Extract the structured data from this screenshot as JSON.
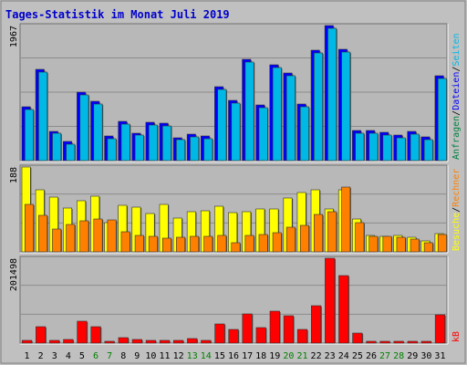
{
  "title": "Tages-Statistik im Monat Juli 2019",
  "colors": {
    "background": "#c0c0c0",
    "panel": "#b8b8b8",
    "title": "#0000cc",
    "weekday_label": "#000000",
    "weekend_label": "#008000",
    "gridline": "#8c8c8c",
    "anfragen": "#008040",
    "dateien": "#0000ff",
    "seiten": "#00b8e6",
    "besuche": "#ffff00",
    "rechner": "#ff8000",
    "kb": "#ff0000"
  },
  "legend": {
    "top": [
      {
        "text": "Anfragen",
        "key": "anfragen"
      },
      {
        "text": "/",
        "key": "weekday_label"
      },
      {
        "text": "Dateien",
        "key": "dateien"
      },
      {
        "text": "/",
        "key": "weekday_label"
      },
      {
        "text": "Seiten",
        "key": "seiten"
      }
    ],
    "middle": [
      {
        "text": "Besuche",
        "key": "besuche"
      },
      {
        "text": "/",
        "key": "weekday_label"
      },
      {
        "text": "Rechner",
        "key": "rechner"
      }
    ],
    "bottom": [
      {
        "text": "kB",
        "key": "kb"
      }
    ]
  },
  "chart_data": [
    {
      "type": "bar",
      "title": "Anfragen / Dateien / Seiten",
      "ylabel": "1967",
      "ylim": [
        0,
        1967
      ],
      "categories": [
        "1",
        "2",
        "3",
        "4",
        "5",
        "6",
        "7",
        "8",
        "9",
        "10",
        "11",
        "12",
        "13",
        "14",
        "15",
        "16",
        "17",
        "18",
        "19",
        "20",
        "21",
        "22",
        "23",
        "24",
        "25",
        "26",
        "27",
        "28",
        "29",
        "30",
        "31"
      ],
      "weekend_days": [
        "6",
        "7",
        "13",
        "14",
        "20",
        "21",
        "27",
        "28"
      ],
      "series": [
        {
          "name": "Dateien",
          "values": [
            785,
            1330,
            430,
            280,
            1000,
            860,
            360,
            570,
            400,
            560,
            540,
            330,
            390,
            360,
            1080,
            880,
            1480,
            805,
            1400,
            1280,
            820,
            1610,
            1967,
            1620,
            440,
            440,
            410,
            370,
            420,
            340,
            1240
          ]
        },
        {
          "name": "Seiten",
          "values": [
            750,
            1290,
            400,
            240,
            960,
            820,
            320,
            530,
            370,
            520,
            500,
            300,
            350,
            320,
            1040,
            840,
            1440,
            770,
            1360,
            1240,
            780,
            1570,
            1930,
            1580,
            400,
            400,
            370,
            330,
            380,
            300,
            1200
          ]
        }
      ]
    },
    {
      "type": "bar",
      "title": "Besuche / Rechner",
      "ylabel": "188",
      "ylim": [
        0,
        188
      ],
      "categories": [
        "1",
        "2",
        "3",
        "4",
        "5",
        "6",
        "7",
        "8",
        "9",
        "10",
        "11",
        "12",
        "13",
        "14",
        "15",
        "16",
        "17",
        "18",
        "19",
        "20",
        "21",
        "22",
        "23",
        "24",
        "25",
        "26",
        "27",
        "28",
        "29",
        "30",
        "31"
      ],
      "weekend_days": [
        "6",
        "7",
        "13",
        "14",
        "20",
        "21",
        "27",
        "28"
      ],
      "series": [
        {
          "name": "Besuche",
          "values": [
            188,
            137,
            121,
            97,
            114,
            123,
            64,
            104,
            99,
            84,
            106,
            74,
            89,
            91,
            102,
            86,
            89,
            95,
            96,
            120,
            132,
            137,
            95,
            138,
            72,
            36,
            35,
            36,
            32,
            25,
            40
          ]
        },
        {
          "name": "Rechner",
          "values": [
            106,
            80,
            50,
            61,
            68,
            72,
            70,
            45,
            36,
            34,
            30,
            33,
            34,
            35,
            37,
            21,
            37,
            39,
            43,
            55,
            58,
            82,
            88,
            143,
            65,
            35,
            34,
            33,
            29,
            20,
            38
          ]
        }
      ]
    },
    {
      "type": "bar",
      "title": "kB",
      "ylabel": "201498",
      "ylim": [
        0,
        201498
      ],
      "categories": [
        "1",
        "2",
        "3",
        "4",
        "5",
        "6",
        "7",
        "8",
        "9",
        "10",
        "11",
        "12",
        "13",
        "14",
        "15",
        "16",
        "17",
        "18",
        "19",
        "20",
        "21",
        "22",
        "23",
        "24",
        "25",
        "26",
        "27",
        "28",
        "29",
        "30",
        "31"
      ],
      "weekend_days": [
        "6",
        "7",
        "13",
        "14",
        "20",
        "21",
        "27",
        "28"
      ],
      "series": [
        {
          "name": "kB",
          "values": [
            6000,
            39000,
            7000,
            8500,
            51000,
            40000,
            3500,
            12000,
            8000,
            6500,
            6500,
            5500,
            11000,
            7000,
            46000,
            33000,
            70000,
            37000,
            76000,
            66000,
            32000,
            88000,
            201498,
            160000,
            23000,
            4000,
            4500,
            4000,
            4500,
            3500,
            67000
          ]
        }
      ]
    }
  ]
}
